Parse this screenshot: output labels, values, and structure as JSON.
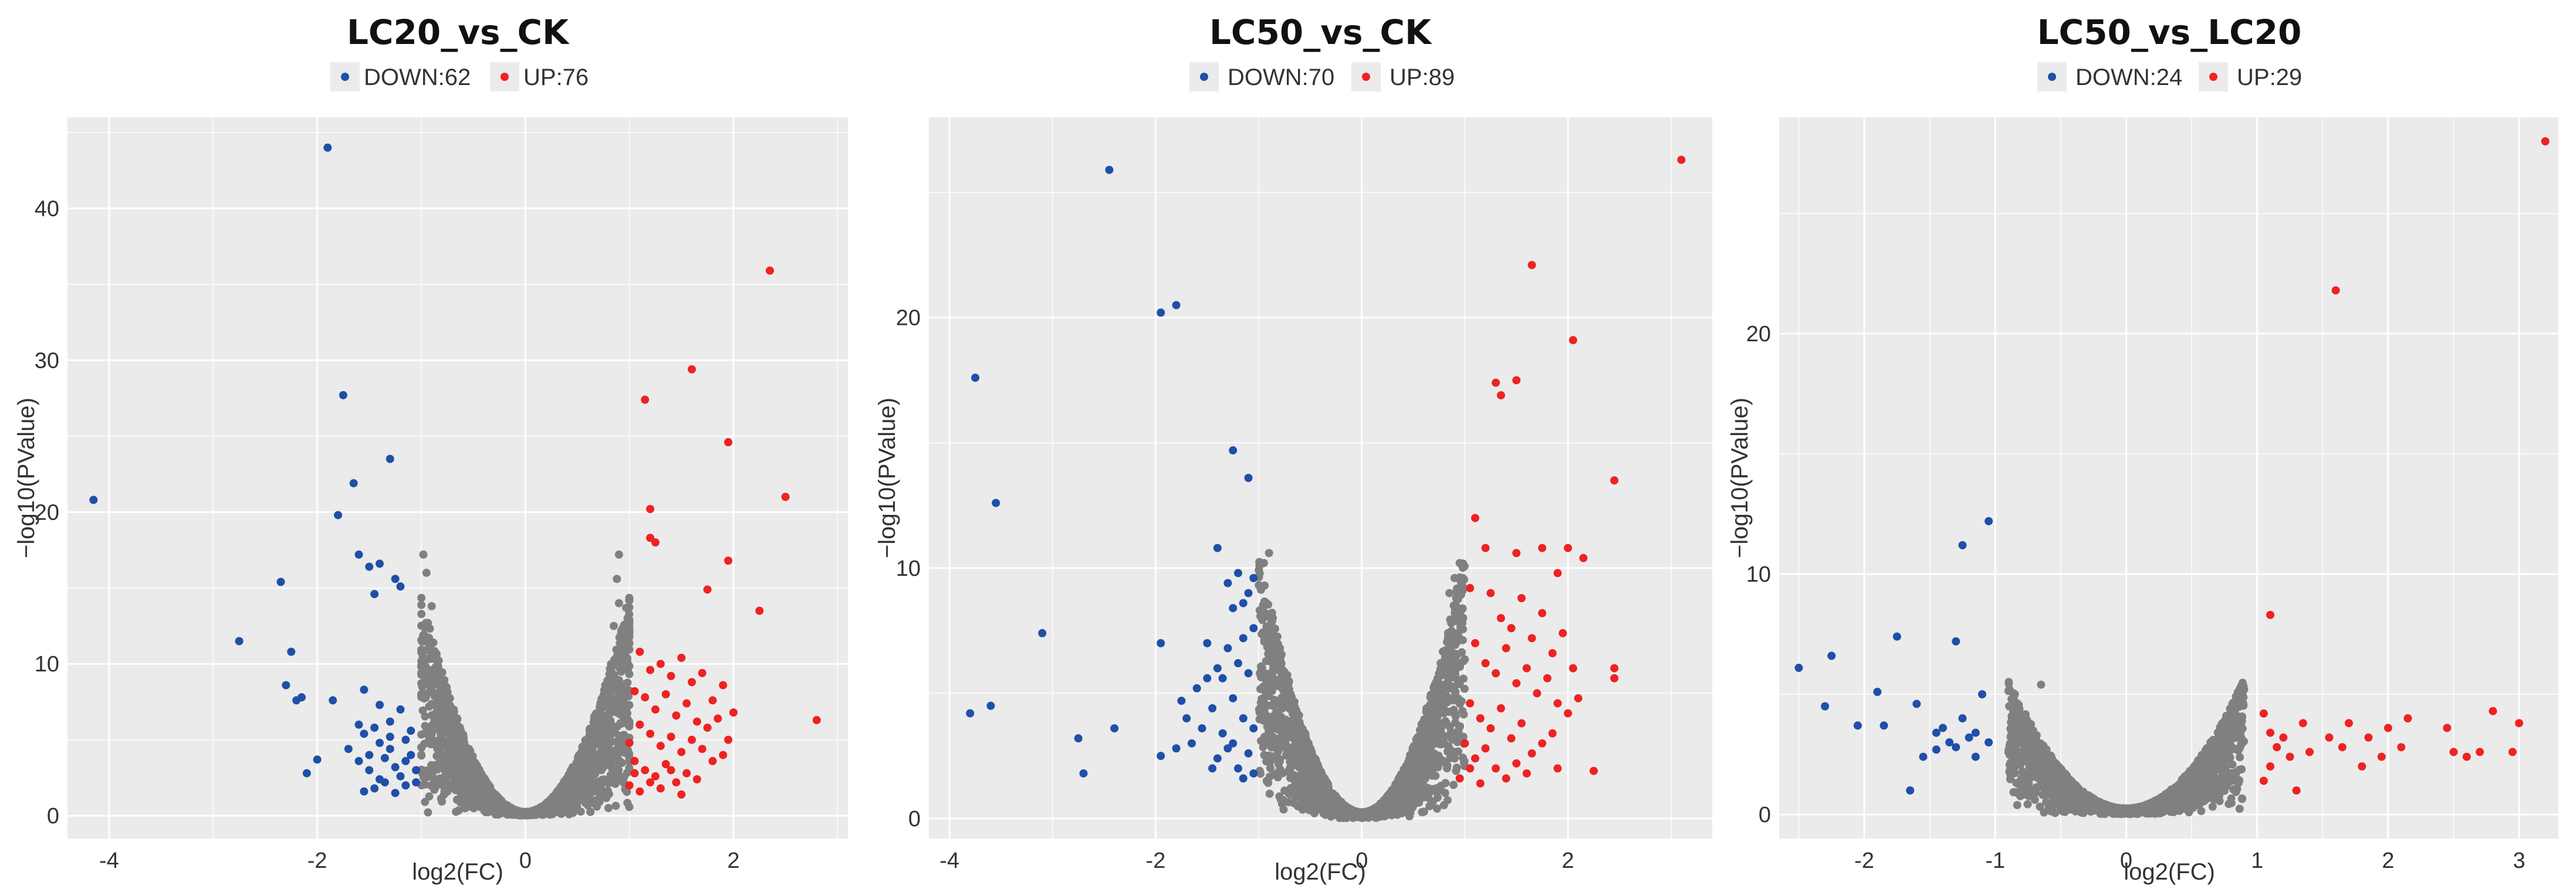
{
  "colors": {
    "down": "#1f4fa8",
    "up": "#ee2222",
    "ns": "#808080",
    "panel_bg": "#ebebeb",
    "grid": "#ffffff",
    "text": "#333333",
    "title": "#111111"
  },
  "chart_data": [
    {
      "type": "scatter",
      "title": "LC20_vs_CK",
      "legend": {
        "down_label": "DOWN:62",
        "up_label": "UP:76",
        "placement": "top"
      },
      "xlabel": "log2(FC)",
      "ylabel": "−log10(PValue)",
      "xlim": [
        -4.4,
        3.1
      ],
      "ylim": [
        -1.5,
        46
      ],
      "xticks": [
        -4,
        -2,
        0,
        2
      ],
      "xtick_labels": [
        "-4",
        "-2",
        "0",
        "2"
      ],
      "yticks": [
        0,
        10,
        20,
        30,
        40
      ],
      "ytick_labels": [
        "0",
        "10",
        "20",
        "30",
        "40"
      ],
      "threshold": 1.0,
      "ns_spread": 1.02,
      "ns_peak": 15,
      "down": [
        [
          -4.15,
          20.8
        ],
        [
          -2.75,
          11.5
        ],
        [
          -2.35,
          15.4
        ],
        [
          -2.25,
          10.8
        ],
        [
          -2.2,
          7.6
        ],
        [
          -2.3,
          8.6
        ],
        [
          -2.15,
          7.8
        ],
        [
          -2.1,
          2.8
        ],
        [
          -2.0,
          3.7
        ],
        [
          -1.9,
          44.0
        ],
        [
          -1.8,
          19.8
        ],
        [
          -1.75,
          27.7
        ],
        [
          -1.65,
          21.9
        ],
        [
          -1.6,
          17.2
        ],
        [
          -1.5,
          16.4
        ],
        [
          -1.45,
          14.6
        ],
        [
          -1.4,
          16.6
        ],
        [
          -1.3,
          23.5
        ],
        [
          -1.25,
          15.6
        ],
        [
          -1.2,
          15.1
        ],
        [
          -1.85,
          7.6
        ],
        [
          -1.55,
          8.3
        ],
        [
          -1.4,
          7.3
        ],
        [
          -1.6,
          6.0
        ],
        [
          -1.55,
          5.4
        ],
        [
          -1.45,
          5.8
        ],
        [
          -1.3,
          6.2
        ],
        [
          -1.2,
          7.0
        ],
        [
          -1.1,
          5.6
        ],
        [
          -1.6,
          3.6
        ],
        [
          -1.5,
          3.0
        ],
        [
          -1.4,
          2.4
        ],
        [
          -1.35,
          3.8
        ],
        [
          -1.3,
          4.4
        ],
        [
          -1.25,
          3.2
        ],
        [
          -1.2,
          2.6
        ],
        [
          -1.15,
          3.6
        ],
        [
          -1.1,
          4.0
        ],
        [
          -1.05,
          3.0
        ],
        [
          -1.55,
          1.6
        ],
        [
          -1.45,
          1.8
        ],
        [
          -1.35,
          2.2
        ],
        [
          -1.25,
          1.5
        ],
        [
          -1.15,
          2.0
        ],
        [
          -1.05,
          2.2
        ],
        [
          -1.5,
          4.0
        ],
        [
          -1.4,
          4.8
        ],
        [
          -1.3,
          5.2
        ],
        [
          -1.7,
          4.4
        ],
        [
          -1.15,
          5.0
        ]
      ],
      "up": [
        [
          1.15,
          27.4
        ],
        [
          1.2,
          20.2
        ],
        [
          1.2,
          18.3
        ],
        [
          1.25,
          18.0
        ],
        [
          1.6,
          29.4
        ],
        [
          2.35,
          35.9
        ],
        [
          1.95,
          24.6
        ],
        [
          2.5,
          21.0
        ],
        [
          1.95,
          16.8
        ],
        [
          1.75,
          14.9
        ],
        [
          2.25,
          13.5
        ],
        [
          2.8,
          6.3
        ],
        [
          1.1,
          10.8
        ],
        [
          1.2,
          9.6
        ],
        [
          1.3,
          10.0
        ],
        [
          1.4,
          9.2
        ],
        [
          1.5,
          10.4
        ],
        [
          1.6,
          8.8
        ],
        [
          1.7,
          9.4
        ],
        [
          1.8,
          7.6
        ],
        [
          1.9,
          8.6
        ],
        [
          2.0,
          6.8
        ],
        [
          1.05,
          8.2
        ],
        [
          1.15,
          7.8
        ],
        [
          1.25,
          7.0
        ],
        [
          1.35,
          8.0
        ],
        [
          1.45,
          6.6
        ],
        [
          1.55,
          7.4
        ],
        [
          1.65,
          6.2
        ],
        [
          1.75,
          5.8
        ],
        [
          1.85,
          6.4
        ],
        [
          1.95,
          5.0
        ],
        [
          1.1,
          6.0
        ],
        [
          1.2,
          5.4
        ],
        [
          1.3,
          4.6
        ],
        [
          1.4,
          5.2
        ],
        [
          1.5,
          4.2
        ],
        [
          1.6,
          5.0
        ],
        [
          1.7,
          4.4
        ],
        [
          1.8,
          3.6
        ],
        [
          1.9,
          4.0
        ],
        [
          1.0,
          4.8
        ],
        [
          1.05,
          3.6
        ],
        [
          1.15,
          3.0
        ],
        [
          1.25,
          2.6
        ],
        [
          1.35,
          3.4
        ],
        [
          1.45,
          2.2
        ],
        [
          1.55,
          2.8
        ],
        [
          1.65,
          2.4
        ],
        [
          1.0,
          2.0
        ],
        [
          1.1,
          1.6
        ],
        [
          1.3,
          1.8
        ],
        [
          1.5,
          1.4
        ],
        [
          1.2,
          2.2
        ],
        [
          1.4,
          3.0
        ],
        [
          1.05,
          2.8
        ]
      ],
      "ns_extra": [
        [
          -0.98,
          17.2
        ],
        [
          -0.95,
          16.0
        ],
        [
          0.9,
          17.2
        ],
        [
          0.88,
          15.6
        ],
        [
          0.9,
          14.0
        ],
        [
          0.85,
          12.5
        ],
        [
          -0.9,
          13.8
        ],
        [
          -0.95,
          11.5
        ]
      ]
    },
    {
      "type": "scatter",
      "title": "LC50_vs_CK",
      "legend": {
        "down_label": "DOWN:70",
        "up_label": "UP:89",
        "placement": "top"
      },
      "xlabel": "log2(FC)",
      "ylabel": "−log10(PValue)",
      "xlim": [
        -4.2,
        3.4
      ],
      "ylim": [
        -0.8,
        28
      ],
      "xticks": [
        -4,
        -2,
        0,
        2
      ],
      "xtick_labels": [
        "-4",
        "-2",
        "0",
        "2"
      ],
      "yticks": [
        0,
        10,
        20
      ],
      "ytick_labels": [
        "0",
        "10",
        "20"
      ],
      "threshold": 1.0,
      "ns_spread": 1.0,
      "ns_peak": 10.5,
      "down": [
        [
          -3.75,
          17.6
        ],
        [
          -3.55,
          12.6
        ],
        [
          -2.45,
          25.9
        ],
        [
          -1.95,
          20.2
        ],
        [
          -1.8,
          20.5
        ],
        [
          -1.25,
          14.7
        ],
        [
          -1.1,
          13.6
        ],
        [
          -3.1,
          7.4
        ],
        [
          -3.8,
          4.2
        ],
        [
          -3.6,
          4.5
        ],
        [
          -2.75,
          3.2
        ],
        [
          -2.7,
          1.8
        ],
        [
          -2.4,
          3.6
        ],
        [
          -1.95,
          2.5
        ],
        [
          -1.95,
          7.0
        ],
        [
          -1.75,
          4.7
        ],
        [
          -1.4,
          10.8
        ],
        [
          -1.2,
          9.8
        ],
        [
          -1.1,
          9.0
        ],
        [
          -1.05,
          7.6
        ],
        [
          -1.25,
          8.4
        ],
        [
          -1.15,
          7.2
        ],
        [
          -1.3,
          6.8
        ],
        [
          -1.4,
          6.0
        ],
        [
          -1.5,
          7.0
        ],
        [
          -1.6,
          5.2
        ],
        [
          -1.7,
          4.0
        ],
        [
          -1.35,
          5.6
        ],
        [
          -1.2,
          6.2
        ],
        [
          -1.1,
          5.8
        ],
        [
          -1.25,
          4.8
        ],
        [
          -1.45,
          4.4
        ],
        [
          -1.55,
          3.6
        ],
        [
          -1.65,
          3.0
        ],
        [
          -1.35,
          3.4
        ],
        [
          -1.25,
          3.0
        ],
        [
          -1.15,
          4.0
        ],
        [
          -1.05,
          3.6
        ],
        [
          -1.8,
          2.8
        ],
        [
          -1.4,
          2.4
        ],
        [
          -1.2,
          2.0
        ],
        [
          -1.1,
          2.6
        ],
        [
          -1.3,
          2.8
        ],
        [
          -1.05,
          1.8
        ],
        [
          -1.15,
          1.6
        ],
        [
          -1.5,
          5.6
        ],
        [
          -1.3,
          9.4
        ],
        [
          -1.15,
          8.6
        ],
        [
          -1.05,
          9.6
        ],
        [
          -1.45,
          2.0
        ]
      ],
      "up": [
        [
          3.1,
          26.3
        ],
        [
          1.65,
          22.1
        ],
        [
          2.05,
          19.1
        ],
        [
          1.3,
          17.4
        ],
        [
          1.35,
          16.9
        ],
        [
          1.5,
          17.5
        ],
        [
          2.45,
          13.5
        ],
        [
          1.1,
          12.0
        ],
        [
          1.2,
          10.8
        ],
        [
          1.5,
          10.6
        ],
        [
          1.75,
          10.8
        ],
        [
          1.9,
          9.8
        ],
        [
          2.15,
          10.4
        ],
        [
          2.0,
          10.8
        ],
        [
          1.05,
          9.2
        ],
        [
          1.25,
          9.0
        ],
        [
          1.35,
          8.0
        ],
        [
          1.45,
          7.6
        ],
        [
          1.55,
          8.8
        ],
        [
          1.65,
          7.2
        ],
        [
          1.75,
          8.2
        ],
        [
          1.85,
          6.6
        ],
        [
          1.95,
          7.4
        ],
        [
          2.05,
          6.0
        ],
        [
          2.45,
          6.0
        ],
        [
          2.45,
          5.6
        ],
        [
          1.1,
          7.0
        ],
        [
          1.2,
          6.2
        ],
        [
          1.3,
          5.8
        ],
        [
          1.4,
          6.8
        ],
        [
          1.5,
          5.4
        ],
        [
          1.6,
          6.0
        ],
        [
          1.7,
          5.0
        ],
        [
          1.8,
          5.6
        ],
        [
          1.9,
          4.6
        ],
        [
          2.0,
          4.2
        ],
        [
          2.1,
          4.8
        ],
        [
          1.05,
          4.6
        ],
        [
          1.15,
          4.0
        ],
        [
          1.25,
          3.6
        ],
        [
          1.35,
          4.4
        ],
        [
          1.45,
          3.2
        ],
        [
          1.55,
          3.8
        ],
        [
          1.65,
          2.6
        ],
        [
          1.75,
          3.0
        ],
        [
          1.85,
          3.4
        ],
        [
          2.25,
          1.9
        ],
        [
          1.0,
          3.0
        ],
        [
          1.1,
          2.4
        ],
        [
          1.2,
          2.8
        ],
        [
          1.3,
          2.0
        ],
        [
          1.4,
          1.6
        ],
        [
          1.5,
          2.2
        ],
        [
          1.6,
          1.8
        ],
        [
          1.9,
          2.0
        ],
        [
          1.05,
          2.0
        ],
        [
          0.95,
          1.6
        ],
        [
          1.15,
          1.4
        ]
      ],
      "ns_extra": [
        [
          -0.95,
          10.2
        ],
        [
          -0.9,
          10.6
        ],
        [
          0.85,
          9.0
        ],
        [
          0.9,
          9.6
        ],
        [
          0.95,
          10.2
        ]
      ]
    },
    {
      "type": "scatter",
      "title": "LC50_vs_LC20",
      "legend": {
        "down_label": "DOWN:24",
        "up_label": "UP:29",
        "placement": "top"
      },
      "xlabel": "log2(FC)",
      "ylabel": "−log10(PValue)",
      "xlim": [
        -2.65,
        3.3
      ],
      "ylim": [
        -1.0,
        29
      ],
      "xticks": [
        -2,
        -1,
        0,
        1,
        2,
        3
      ],
      "xtick_labels": [
        "-2",
        "-1",
        "0",
        "1",
        "2",
        "3"
      ],
      "yticks": [
        0,
        10,
        20
      ],
      "ytick_labels": [
        "0",
        "10",
        "20"
      ],
      "threshold": 1.0,
      "ns_spread": 0.9,
      "ns_peak": 5.4,
      "down": [
        [
          -2.5,
          6.1
        ],
        [
          -2.3,
          4.5
        ],
        [
          -2.25,
          6.6
        ],
        [
          -2.05,
          3.7
        ],
        [
          -1.9,
          5.1
        ],
        [
          -1.85,
          3.7
        ],
        [
          -1.75,
          7.4
        ],
        [
          -1.65,
          1.0
        ],
        [
          -1.6,
          4.6
        ],
        [
          -1.55,
          2.4
        ],
        [
          -1.45,
          2.7
        ],
        [
          -1.4,
          3.6
        ],
        [
          -1.35,
          3.0
        ],
        [
          -1.3,
          7.2
        ],
        [
          -1.25,
          11.2
        ],
        [
          -1.2,
          3.2
        ],
        [
          -1.15,
          2.4
        ],
        [
          -1.1,
          5.0
        ],
        [
          -1.05,
          12.2
        ],
        [
          -1.05,
          3.0
        ],
        [
          -1.25,
          4.0
        ],
        [
          -1.45,
          3.4
        ],
        [
          -1.3,
          2.8
        ],
        [
          -1.15,
          3.4
        ]
      ],
      "up": [
        [
          3.2,
          28.0
        ],
        [
          1.6,
          21.8
        ],
        [
          1.1,
          8.3
        ],
        [
          1.05,
          4.2
        ],
        [
          1.1,
          3.4
        ],
        [
          1.15,
          2.8
        ],
        [
          1.1,
          2.0
        ],
        [
          1.2,
          3.2
        ],
        [
          1.25,
          2.4
        ],
        [
          1.35,
          3.8
        ],
        [
          1.4,
          2.6
        ],
        [
          1.55,
          3.2
        ],
        [
          1.65,
          2.8
        ],
        [
          1.7,
          3.8
        ],
        [
          1.8,
          2.0
        ],
        [
          1.85,
          3.2
        ],
        [
          1.95,
          2.4
        ],
        [
          2.0,
          3.6
        ],
        [
          2.1,
          2.8
        ],
        [
          2.15,
          4.0
        ],
        [
          2.45,
          3.6
        ],
        [
          2.5,
          2.6
        ],
        [
          2.6,
          2.4
        ],
        [
          2.7,
          2.6
        ],
        [
          2.8,
          4.3
        ],
        [
          2.95,
          2.6
        ],
        [
          3.0,
          3.8
        ],
        [
          1.05,
          1.4
        ],
        [
          1.3,
          1.0
        ]
      ],
      "ns_extra": [
        [
          0.9,
          5.2
        ],
        [
          0.85,
          4.9
        ],
        [
          -0.85,
          5.0
        ],
        [
          -0.65,
          5.4
        ]
      ]
    }
  ]
}
